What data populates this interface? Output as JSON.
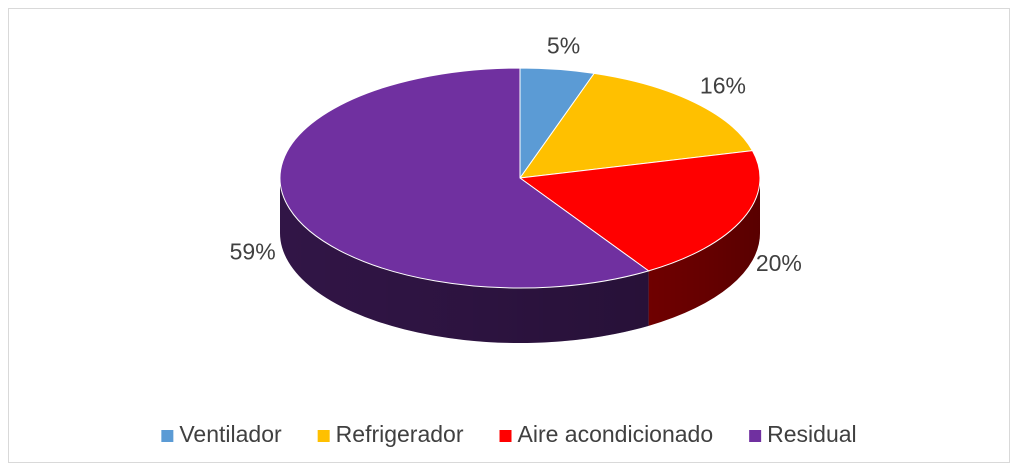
{
  "chart_data": {
    "type": "pie",
    "categories": [
      "Ventilador",
      "Refrigerador",
      "Aire acondicionado",
      "Residual"
    ],
    "values": [
      5,
      16,
      20,
      59
    ],
    "value_labels": [
      "5%",
      "16%",
      "20%",
      "59%"
    ],
    "colors": [
      "#5b9bd5",
      "#ffc000",
      "#ff0000",
      "#7030a0"
    ],
    "legend": "bottom"
  }
}
